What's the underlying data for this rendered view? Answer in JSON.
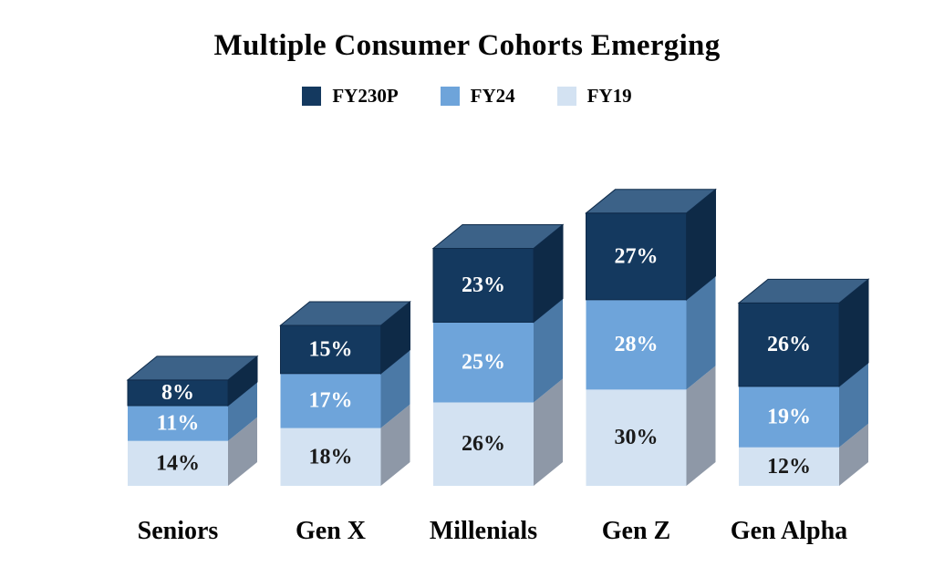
{
  "chart_data": {
    "type": "bar",
    "subtype": "3d-stacked-column",
    "title": "Multiple Consumer Cohorts Emerging",
    "legend_position": "top",
    "grid": false,
    "axes_visible": false,
    "value_suffix": "%",
    "background": "#ffffff",
    "categories": [
      "Seniors",
      "Gen X",
      "Millenials",
      "Gen Z",
      "Gen Alpha"
    ],
    "series": [
      {
        "name": "FY230P",
        "values": [
          8,
          15,
          23,
          27,
          26
        ],
        "color": "#14395f",
        "side_color": "#0e2a47",
        "top_color": "#3c6288",
        "label_color": "#ffffff"
      },
      {
        "name": "FY24",
        "values": [
          11,
          17,
          25,
          28,
          19
        ],
        "color": "#6ea4da",
        "side_color": "#4b79a6",
        "top_color": "#8fb8e2",
        "label_color": "#ffffff"
      },
      {
        "name": "FY19",
        "values": [
          14,
          18,
          26,
          30,
          12
        ],
        "color": "#d3e2f2",
        "side_color": "#8e98a7",
        "top_color": "#e2ebf7",
        "label_color": "#1a1a1a"
      }
    ],
    "stack_totals": [
      33,
      50,
      74,
      85,
      57
    ]
  }
}
